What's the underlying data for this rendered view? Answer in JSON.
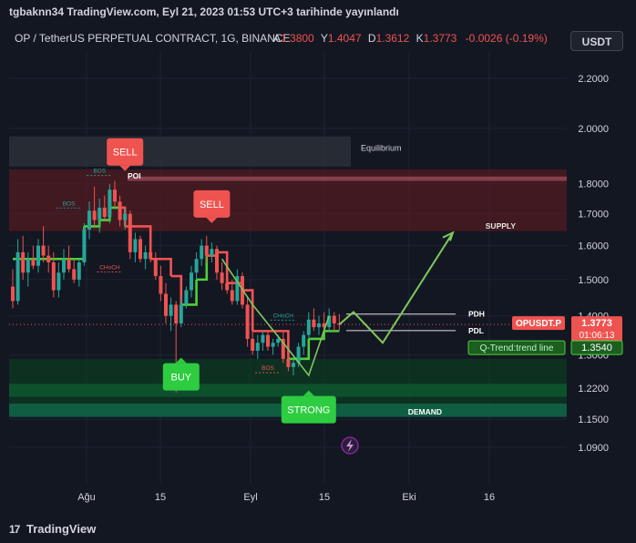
{
  "header": {
    "published": "tgbaknn34 TradingView.com, Eyl 21, 2023 01:53 UTC+3 tarihinde yayınlandı"
  },
  "legend": {
    "symbol": "OP / TetherUS PERPETUAL CONTRACT, 1G, BINANCE",
    "o_label": "A",
    "o_value": "1.3800",
    "h_label": "Y",
    "h_value": "1.4047",
    "l_label": "D",
    "l_value": "1.3612",
    "c_label": "K",
    "c_value": "1.3773",
    "change": "-0.0026 (-0.19%)"
  },
  "currency_button": "USDT",
  "footer": {
    "brand": "TradingView",
    "logo_glyph": "17"
  },
  "colors": {
    "background": "#131722",
    "up": "#26a69a",
    "down": "#ef5350",
    "trend_up": "#4cd137",
    "trend_down": "#f05454",
    "supply_zone": "#5a1a22",
    "demand_zone": "#0e4a2c",
    "buy_badge": "#2ecc40",
    "sell_badge": "#ef5350",
    "projection": "#7fc75a"
  },
  "chart_data": {
    "type": "candlestick",
    "y_scale": "log",
    "y_ticks": [
      "2.2000",
      "2.0000",
      "1.8000",
      "1.7000",
      "1.6000",
      "1.5000",
      "1.4000",
      "1.3000",
      "1.2200",
      "1.1500",
      "1.0900"
    ],
    "x_ticks": [
      "Ağu",
      "15",
      "Eyl",
      "15",
      "Eki",
      "16"
    ],
    "last_price": {
      "ticker": "OPUSDT.P",
      "price": "1.3773",
      "countdown": "01:06:13"
    },
    "trend_line": {
      "label": "Q-Trend:trend line",
      "value": "1.3540"
    },
    "zones": [
      {
        "label": "Equilibrium",
        "top": 1.97,
        "bottom": 1.86
      },
      {
        "label": "SUPPLY",
        "top": 1.85,
        "bottom": 1.645
      },
      {
        "label": "POI",
        "top": 1.825,
        "bottom": 1.81
      },
      {
        "label": "DEMAND",
        "top": 1.185,
        "bottom": 1.155
      }
    ],
    "levels": [
      {
        "label": "PDH",
        "value": 1.4047
      },
      {
        "label": "PDL",
        "value": 1.3612
      }
    ],
    "signals": [
      {
        "label": "SELL",
        "candle": 22,
        "price": 1.8
      },
      {
        "label": "SELL",
        "candle": 39,
        "price": 1.63
      },
      {
        "label": "BUY",
        "candle": 33,
        "price": 1.32
      },
      {
        "label": "STRONG",
        "candle": 58,
        "price": 1.24
      }
    ],
    "structure_labels": [
      {
        "label": "BOS",
        "candle": 17,
        "price": 1.838
      },
      {
        "label": "BOS",
        "candle": 11,
        "price": 1.728
      },
      {
        "label": "CHoCH",
        "candle": 19,
        "price": 1.53
      },
      {
        "label": "CHoCH",
        "candle": 53,
        "price": 1.396
      },
      {
        "label": "BOS",
        "candle": 50,
        "price": 1.263
      }
    ],
    "candles": [
      {
        "o": 1.48,
        "h": 1.53,
        "l": 1.42,
        "c": 1.44
      },
      {
        "o": 1.44,
        "h": 1.62,
        "l": 1.43,
        "c": 1.58
      },
      {
        "o": 1.58,
        "h": 1.63,
        "l": 1.5,
        "c": 1.52
      },
      {
        "o": 1.52,
        "h": 1.58,
        "l": 1.48,
        "c": 1.56
      },
      {
        "o": 1.56,
        "h": 1.6,
        "l": 1.53,
        "c": 1.54
      },
      {
        "o": 1.54,
        "h": 1.62,
        "l": 1.52,
        "c": 1.6
      },
      {
        "o": 1.6,
        "h": 1.66,
        "l": 1.55,
        "c": 1.57
      },
      {
        "o": 1.57,
        "h": 1.6,
        "l": 1.52,
        "c": 1.55
      },
      {
        "o": 1.55,
        "h": 1.58,
        "l": 1.45,
        "c": 1.47
      },
      {
        "o": 1.47,
        "h": 1.55,
        "l": 1.45,
        "c": 1.52
      },
      {
        "o": 1.52,
        "h": 1.59,
        "l": 1.5,
        "c": 1.56
      },
      {
        "o": 1.56,
        "h": 1.6,
        "l": 1.52,
        "c": 1.53
      },
      {
        "o": 1.53,
        "h": 1.56,
        "l": 1.49,
        "c": 1.5
      },
      {
        "o": 1.5,
        "h": 1.56,
        "l": 1.48,
        "c": 1.55
      },
      {
        "o": 1.55,
        "h": 1.67,
        "l": 1.54,
        "c": 1.65
      },
      {
        "o": 1.65,
        "h": 1.74,
        "l": 1.62,
        "c": 1.71
      },
      {
        "o": 1.71,
        "h": 1.79,
        "l": 1.66,
        "c": 1.68
      },
      {
        "o": 1.68,
        "h": 1.75,
        "l": 1.64,
        "c": 1.72
      },
      {
        "o": 1.72,
        "h": 1.76,
        "l": 1.68,
        "c": 1.69
      },
      {
        "o": 1.69,
        "h": 1.8,
        "l": 1.67,
        "c": 1.78
      },
      {
        "o": 1.78,
        "h": 1.81,
        "l": 1.72,
        "c": 1.74
      },
      {
        "o": 1.74,
        "h": 1.76,
        "l": 1.66,
        "c": 1.68
      },
      {
        "o": 1.68,
        "h": 1.72,
        "l": 1.65,
        "c": 1.7
      },
      {
        "o": 1.7,
        "h": 1.71,
        "l": 1.56,
        "c": 1.58
      },
      {
        "o": 1.58,
        "h": 1.64,
        "l": 1.55,
        "c": 1.62
      },
      {
        "o": 1.62,
        "h": 1.63,
        "l": 1.55,
        "c": 1.56
      },
      {
        "o": 1.56,
        "h": 1.6,
        "l": 1.53,
        "c": 1.58
      },
      {
        "o": 1.58,
        "h": 1.6,
        "l": 1.55,
        "c": 1.56
      },
      {
        "o": 1.56,
        "h": 1.58,
        "l": 1.5,
        "c": 1.51
      },
      {
        "o": 1.51,
        "h": 1.54,
        "l": 1.44,
        "c": 1.46
      },
      {
        "o": 1.46,
        "h": 1.49,
        "l": 1.38,
        "c": 1.4
      },
      {
        "o": 1.4,
        "h": 1.45,
        "l": 1.36,
        "c": 1.43
      },
      {
        "o": 1.43,
        "h": 1.44,
        "l": 1.21,
        "c": 1.38
      },
      {
        "o": 1.38,
        "h": 1.45,
        "l": 1.37,
        "c": 1.43
      },
      {
        "o": 1.43,
        "h": 1.48,
        "l": 1.42,
        "c": 1.47
      },
      {
        "o": 1.47,
        "h": 1.54,
        "l": 1.45,
        "c": 1.52
      },
      {
        "o": 1.52,
        "h": 1.58,
        "l": 1.5,
        "c": 1.56
      },
      {
        "o": 1.56,
        "h": 1.62,
        "l": 1.54,
        "c": 1.6
      },
      {
        "o": 1.6,
        "h": 1.63,
        "l": 1.55,
        "c": 1.57
      },
      {
        "o": 1.57,
        "h": 1.61,
        "l": 1.55,
        "c": 1.59
      },
      {
        "o": 1.59,
        "h": 1.6,
        "l": 1.5,
        "c": 1.52
      },
      {
        "o": 1.52,
        "h": 1.55,
        "l": 1.47,
        "c": 1.49
      },
      {
        "o": 1.49,
        "h": 1.51,
        "l": 1.46,
        "c": 1.47
      },
      {
        "o": 1.47,
        "h": 1.5,
        "l": 1.43,
        "c": 1.44
      },
      {
        "o": 1.44,
        "h": 1.53,
        "l": 1.43,
        "c": 1.51
      },
      {
        "o": 1.51,
        "h": 1.52,
        "l": 1.42,
        "c": 1.43
      },
      {
        "o": 1.43,
        "h": 1.45,
        "l": 1.32,
        "c": 1.34
      },
      {
        "o": 1.34,
        "h": 1.37,
        "l": 1.3,
        "c": 1.31
      },
      {
        "o": 1.31,
        "h": 1.35,
        "l": 1.29,
        "c": 1.33
      },
      {
        "o": 1.33,
        "h": 1.36,
        "l": 1.31,
        "c": 1.35
      },
      {
        "o": 1.35,
        "h": 1.36,
        "l": 1.31,
        "c": 1.32
      },
      {
        "o": 1.32,
        "h": 1.34,
        "l": 1.3,
        "c": 1.33
      },
      {
        "o": 1.33,
        "h": 1.35,
        "l": 1.32,
        "c": 1.34
      },
      {
        "o": 1.34,
        "h": 1.36,
        "l": 1.28,
        "c": 1.29
      },
      {
        "o": 1.29,
        "h": 1.3,
        "l": 1.26,
        "c": 1.27
      },
      {
        "o": 1.27,
        "h": 1.29,
        "l": 1.25,
        "c": 1.28
      },
      {
        "o": 1.28,
        "h": 1.33,
        "l": 1.27,
        "c": 1.32
      },
      {
        "o": 1.32,
        "h": 1.36,
        "l": 1.3,
        "c": 1.35
      },
      {
        "o": 1.35,
        "h": 1.41,
        "l": 1.34,
        "c": 1.39
      },
      {
        "o": 1.39,
        "h": 1.42,
        "l": 1.36,
        "c": 1.37
      },
      {
        "o": 1.37,
        "h": 1.4,
        "l": 1.35,
        "c": 1.38
      },
      {
        "o": 1.38,
        "h": 1.41,
        "l": 1.36,
        "c": 1.37
      },
      {
        "o": 1.37,
        "h": 1.42,
        "l": 1.36,
        "c": 1.4
      },
      {
        "o": 1.4,
        "h": 1.41,
        "l": 1.36,
        "c": 1.38
      },
      {
        "o": 1.38,
        "h": 1.4047,
        "l": 1.3612,
        "c": 1.3773
      }
    ]
  }
}
